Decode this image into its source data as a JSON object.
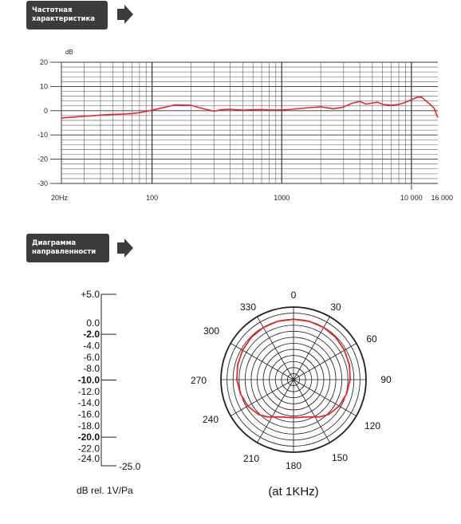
{
  "sections": {
    "freq": {
      "tag_line1": "Частотная",
      "tag_line2": "характеристика"
    },
    "polar": {
      "tag_line1": "Диаграмма",
      "tag_line2": "направленности"
    }
  },
  "colors": {
    "curve": "#e8262b",
    "tag_bg": "#3c3c3c",
    "grid": "#555555"
  },
  "chart_data": [
    {
      "type": "line",
      "title": "",
      "ylabel": "dB",
      "xlabel": "",
      "x_scale": "log",
      "xlim": [
        20,
        16000
      ],
      "ylim": [
        -30,
        20
      ],
      "grid": true,
      "x_ticks": [
        {
          "value": 20,
          "label": "20Hz"
        },
        {
          "value": 100,
          "label": "100"
        },
        {
          "value": 1000,
          "label": "1000"
        },
        {
          "value": 10000,
          "label": "10 000"
        },
        {
          "value": 16000,
          "label": "16 000"
        }
      ],
      "y_ticks": [
        {
          "value": 20,
          "label": "20"
        },
        {
          "value": 10,
          "label": "10"
        },
        {
          "value": 0,
          "label": "0"
        },
        {
          "value": -10,
          "label": "-10"
        },
        {
          "value": -20,
          "label": "-20"
        },
        {
          "value": -30,
          "label": "-30"
        }
      ],
      "series": [
        {
          "x": [
            20,
            30,
            40,
            50,
            60,
            70,
            80,
            90,
            100,
            120,
            150,
            200,
            250,
            300,
            350,
            400,
            500,
            600,
            700,
            800,
            1000,
            1200,
            1500,
            2000,
            2500,
            3000,
            3500,
            4000,
            4500,
            5000,
            5500,
            6000,
            7000,
            8000,
            9000,
            10000,
            11000,
            12000,
            13000,
            14000,
            15000,
            16000
          ],
          "y": [
            -3,
            -2.3,
            -1.8,
            -1.5,
            -1.4,
            -1.2,
            -0.8,
            -0.3,
            0.2,
            1.2,
            2.4,
            2.2,
            0.8,
            -0.2,
            0.5,
            0.6,
            0.2,
            0.4,
            0.5,
            0.3,
            0.3,
            0.6,
            1.1,
            1.6,
            0.8,
            1.5,
            3.1,
            3.8,
            2.7,
            3.2,
            3.5,
            2.6,
            2.2,
            2.6,
            3.5,
            4.5,
            5.5,
            5.6,
            4.0,
            2.5,
            1.0,
            -2.8
          ]
        }
      ]
    },
    {
      "type": "polar",
      "title": "",
      "caption": "(at 1KHz)",
      "angle_labels": [
        "0",
        "30",
        "60",
        "90",
        "120",
        "150",
        "180",
        "210",
        "240",
        "270",
        "300",
        "330"
      ],
      "scale_unit": "dB rel. 1V/Pa",
      "rlim": [
        -25,
        5
      ],
      "scale_labels": [
        {
          "value": 5,
          "label": "+5.0",
          "tick": true
        },
        {
          "value": 0,
          "label": "0.0"
        },
        {
          "value": -2,
          "label": "-2.0",
          "bold": true,
          "tick": true
        },
        {
          "value": -4,
          "label": "-4.0"
        },
        {
          "value": -6,
          "label": "-6.0"
        },
        {
          "value": -8,
          "label": "-8.0"
        },
        {
          "value": -10,
          "label": "-10.0",
          "bold": true,
          "tick": true
        },
        {
          "value": -12,
          "label": "-12.0"
        },
        {
          "value": -14,
          "label": "-14.0"
        },
        {
          "value": -16,
          "label": "-16.0"
        },
        {
          "value": -18,
          "label": "-18.0"
        },
        {
          "value": -20,
          "label": "-20.0",
          "bold": true,
          "tick": true
        },
        {
          "value": -22,
          "label": "-22.0"
        },
        {
          "value": -24,
          "label": "-24.0"
        },
        {
          "value": -25,
          "label": "-25.0",
          "tick": true
        }
      ],
      "series": [
        {
          "angles": [
            0,
            15,
            30,
            45,
            60,
            75,
            90,
            105,
            120,
            135,
            145,
            155,
            165,
            172,
            180,
            188,
            195,
            205,
            215,
            225,
            240,
            255,
            270,
            285,
            300,
            315,
            330,
            345
          ],
          "values": [
            0,
            0,
            -0.1,
            -0.3,
            -0.7,
            -1.1,
            -1.6,
            -2.3,
            -3.2,
            -4.6,
            -6.2,
            -8.0,
            -9.0,
            -9.2,
            -9.4,
            -9.2,
            -9.0,
            -8.0,
            -6.2,
            -4.6,
            -3.2,
            -2.3,
            -1.6,
            -1.1,
            -0.7,
            -0.3,
            -0.1,
            0
          ]
        }
      ]
    }
  ]
}
